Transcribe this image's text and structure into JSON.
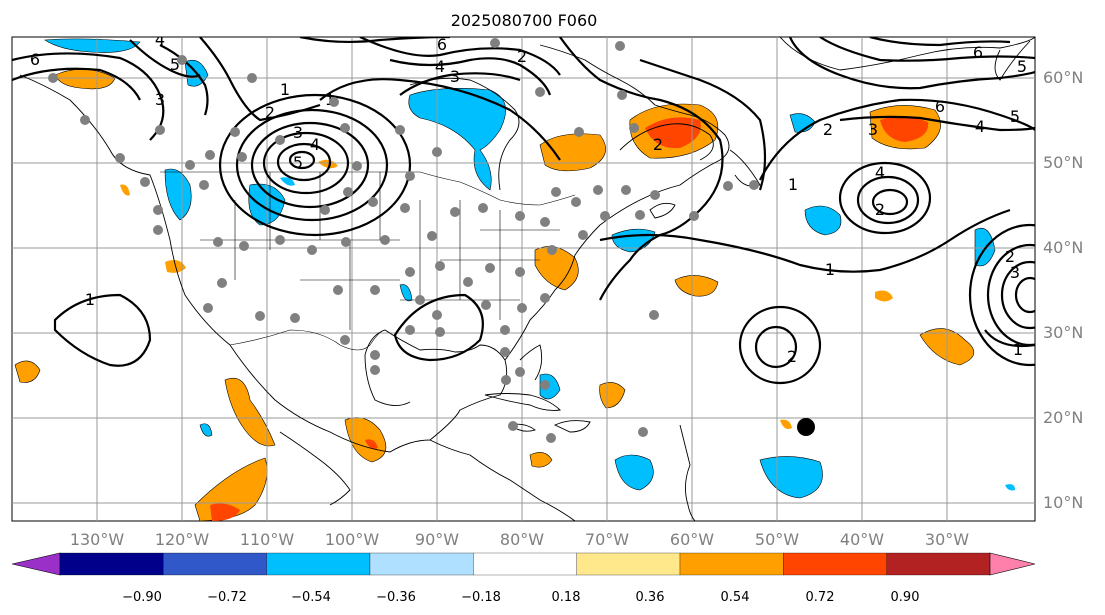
{
  "title": "2025080700 F060",
  "lat_labels": [
    "60°N",
    "50°N",
    "40°N",
    "30°N",
    "20°N",
    "10°N"
  ],
  "lon_labels": [
    "130°W",
    "120°W",
    "110°W",
    "100°W",
    "90°W",
    "80°W",
    "70°W",
    "60°W",
    "50°W",
    "40°W",
    "30°W"
  ],
  "colorbar": {
    "tick_labels": [
      "−0.90",
      "−0.72",
      "−0.54",
      "−0.36",
      "−0.18",
      "0.18",
      "0.36",
      "0.54",
      "0.72",
      "0.90"
    ],
    "colors": [
      "#9b30c8",
      "#00008b",
      "#3158c9",
      "#00bfff",
      "#b0e0ff",
      "#ffffff",
      "#ffe88c",
      "#ffa000",
      "#ff4500",
      "#b22222",
      "#ff80aa"
    ]
  },
  "contour_labels": [
    "6",
    "4",
    "3",
    "2",
    "1",
    "5",
    "6",
    "4",
    "3",
    "2",
    "1",
    "2",
    "3",
    "4",
    "5",
    "6",
    "1",
    "2",
    "3",
    "4",
    "5",
    "6",
    "1",
    "2",
    "2",
    "3",
    "4",
    "5",
    "1",
    "2",
    "1"
  ],
  "colors": {
    "grid": "#999999",
    "label_gray": "#808080",
    "station_dot": "#808080"
  }
}
